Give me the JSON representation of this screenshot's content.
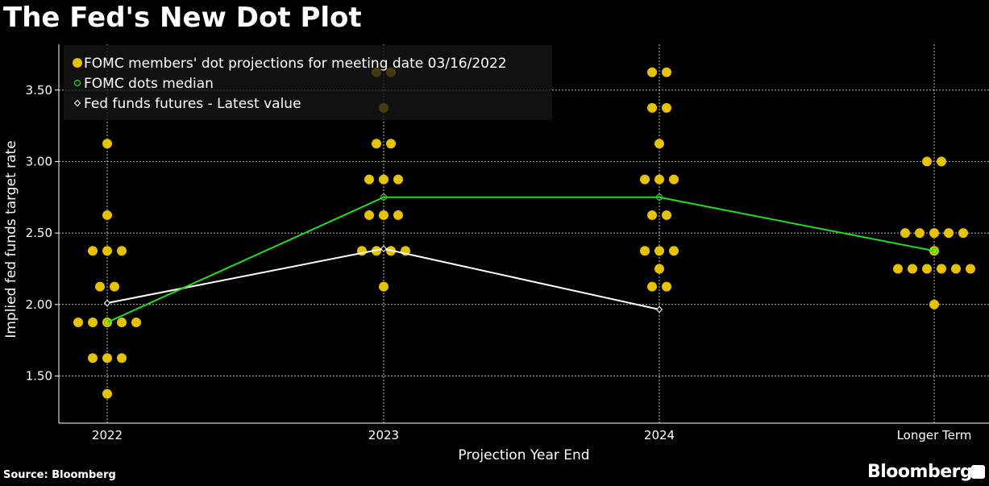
{
  "title": "The Fed's New Dot Plot",
  "source": "Source: Bloomberg",
  "logo": "Bloomberg",
  "chart_data": {
    "type": "scatter",
    "title": "",
    "xlabel": "Projection Year End",
    "ylabel": "Implied fed funds target rate",
    "categories": [
      "2022",
      "2023",
      "2024",
      "Longer Term"
    ],
    "ylim": [
      1.17,
      3.82
    ],
    "yticks": [
      "1.50",
      "2.00",
      "2.50",
      "3.00",
      "3.50"
    ],
    "grid": true,
    "legend_position": "top-left",
    "colors": {
      "dots": "#e6c200",
      "median": "#22dd22",
      "futures": "#ffffff",
      "background": "#000000"
    },
    "series": [
      {
        "name": "FOMC members' dot projections for meeting date 03/16/2022",
        "kind": "dots",
        "counts": [
          {
            "3.125": 1,
            "2.625": 1,
            "2.375": 3,
            "2.125": 2,
            "1.875": 5,
            "1.625": 3,
            "1.375": 1
          },
          {
            "3.625": 2,
            "3.375": 1,
            "3.125": 2,
            "2.875": 3,
            "2.625": 3,
            "2.375": 4,
            "2.125": 1
          },
          {
            "3.625": 2,
            "3.375": 2,
            "3.125": 1,
            "2.875": 3,
            "2.625": 2,
            "2.375": 3,
            "2.25": 1,
            "2.125": 2
          },
          {
            "3.0": 2,
            "2.5": 5,
            "2.375": 1,
            "2.25": 6,
            "2.0": 1
          }
        ]
      },
      {
        "name": "FOMC dots median",
        "kind": "line-circle",
        "values": [
          1.875,
          2.75,
          2.75,
          2.375
        ]
      },
      {
        "name": "Fed funds futures - Latest value",
        "kind": "line-diamond",
        "values": [
          2.01,
          2.39,
          1.965,
          null
        ]
      }
    ]
  }
}
